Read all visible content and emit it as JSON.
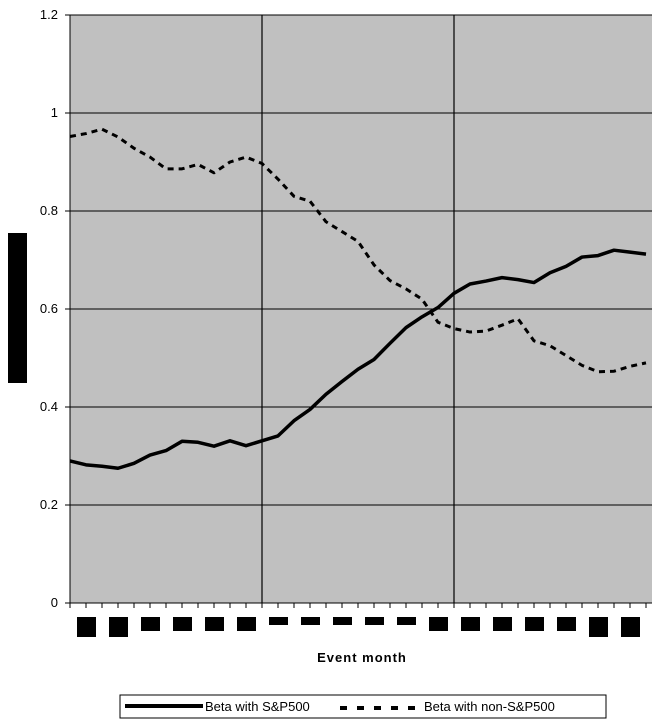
{
  "chart_data": {
    "type": "line",
    "title": "",
    "xlabel": "Event month",
    "ylabel": "",
    "ylim": [
      0,
      1.2
    ],
    "yticks": [
      0,
      0.2,
      0.4,
      0.6,
      0.8,
      1,
      1.2
    ],
    "ytick_labels": [
      "0",
      "0.2",
      "0.4",
      "0.6",
      "0.8",
      "1",
      "1.2"
    ],
    "x_count": 37,
    "event_lines_at_index": [
      12,
      24
    ],
    "grid": true,
    "legend_position": "bottom",
    "colors": {
      "plot_background": "#c0c0c0",
      "grid": "#000000",
      "series": "#000000"
    },
    "series": [
      {
        "name": "Beta with S&P500",
        "style": "solid",
        "values": [
          0.29,
          0.282,
          0.279,
          0.275,
          0.285,
          0.302,
          0.311,
          0.33,
          0.328,
          0.32,
          0.331,
          0.321,
          0.331,
          0.341,
          0.372,
          0.395,
          0.426,
          0.452,
          0.477,
          0.497,
          0.53,
          0.562,
          0.584,
          0.603,
          0.632,
          0.651,
          0.657,
          0.664,
          0.66,
          0.654,
          0.674,
          0.687,
          0.706,
          0.709,
          0.72,
          0.716,
          0.712
        ]
      },
      {
        "name": "Beta with non-S&P500",
        "style": "dashed",
        "values": [
          0.952,
          0.958,
          0.967,
          0.951,
          0.928,
          0.91,
          0.886,
          0.886,
          0.895,
          0.878,
          0.9,
          0.91,
          0.897,
          0.865,
          0.83,
          0.82,
          0.778,
          0.758,
          0.738,
          0.69,
          0.658,
          0.641,
          0.62,
          0.573,
          0.56,
          0.553,
          0.555,
          0.567,
          0.58,
          0.535,
          0.525,
          0.505,
          0.485,
          0.472,
          0.473,
          0.483,
          0.49
        ]
      }
    ]
  }
}
